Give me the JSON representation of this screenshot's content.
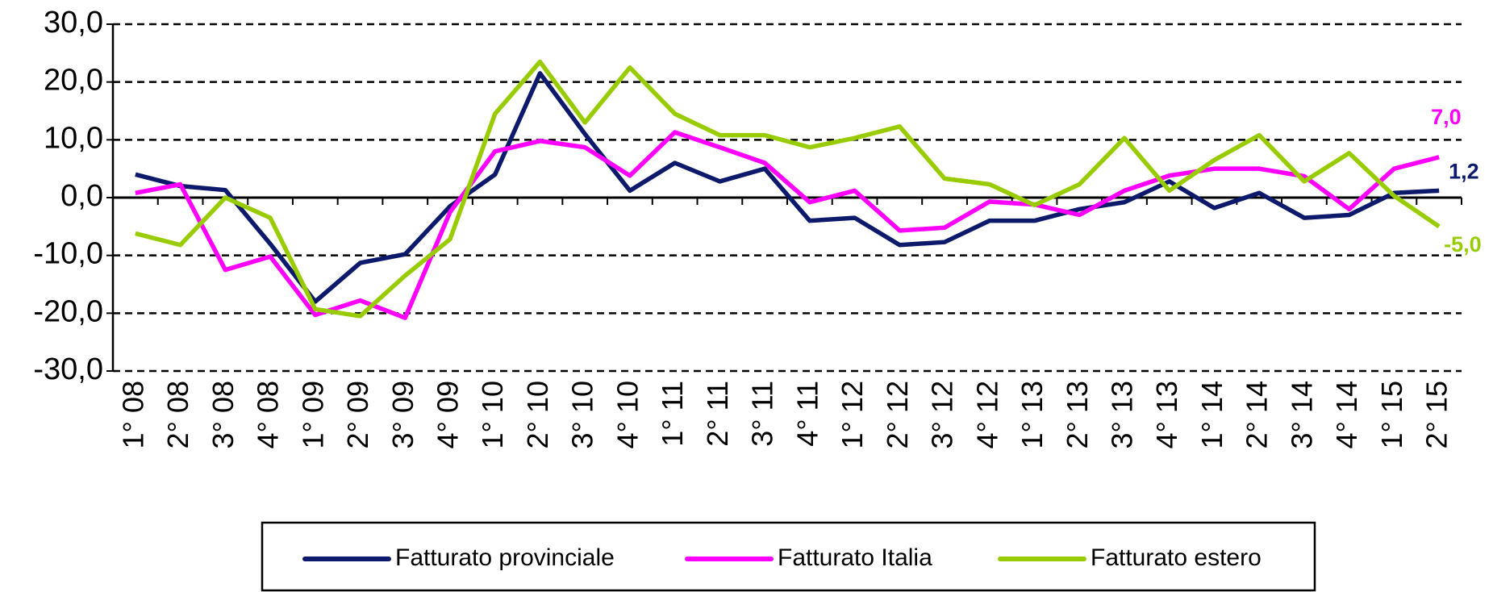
{
  "chart_data": {
    "type": "line",
    "categories": [
      "1° 08",
      "2° 08",
      "3° 08",
      "4° 08",
      "1° 09",
      "2° 09",
      "3° 09",
      "4° 09",
      "1° 10",
      "2° 10",
      "3° 10",
      "4° 10",
      "1° 11",
      "2° 11",
      "3° 11",
      "4° 11",
      "1° 12",
      "2° 12",
      "3° 12",
      "4° 12",
      "1° 13",
      "2° 13",
      "3° 13",
      "4° 13",
      "1° 14",
      "2° 14",
      "3° 14",
      "4° 14",
      "1° 15",
      "2° 15"
    ],
    "series": [
      {
        "name": "Fatturato provinciale",
        "color": "#0d1a6b",
        "values": [
          4,
          2,
          1.3,
          -8,
          -18,
          -11.3,
          -9.8,
          -1.5,
          4,
          21.5,
          11,
          1.2,
          6,
          2.8,
          5,
          -4,
          -3.5,
          -8.2,
          -7.7,
          -4,
          -4,
          -2,
          -0.8,
          2.8,
          -1.8,
          0.8,
          -3.5,
          -3,
          0.8,
          1.2
        ],
        "value_labels": [
          null,
          null,
          null,
          null,
          null,
          null,
          null,
          null,
          null,
          null,
          null,
          null,
          null,
          null,
          null,
          null,
          null,
          null,
          null,
          null,
          null,
          null,
          null,
          null,
          null,
          null,
          null,
          null,
          null,
          "1,2"
        ]
      },
      {
        "name": "Fatturato Italia",
        "color": "#ff00ff",
        "values": [
          0.8,
          2.3,
          -12.5,
          -10.2,
          -20.3,
          -17.8,
          -20.8,
          -2.5,
          8,
          9.8,
          8.7,
          3.8,
          11.3,
          8.7,
          6,
          -0.8,
          1.2,
          -5.7,
          -5.2,
          -0.7,
          -1.2,
          -3,
          1.2,
          3.8,
          5,
          5,
          3.7,
          -2,
          5,
          7.0
        ],
        "value_labels": [
          null,
          null,
          null,
          null,
          null,
          null,
          null,
          null,
          null,
          null,
          null,
          null,
          null,
          null,
          null,
          null,
          null,
          null,
          null,
          null,
          null,
          null,
          null,
          null,
          null,
          null,
          null,
          null,
          null,
          "7,0"
        ]
      },
      {
        "name": "Fatturato estero",
        "color": "#99cc00",
        "values": [
          -6.2,
          -8.2,
          0,
          -3.5,
          -19.3,
          -20.5,
          -13.5,
          -7.2,
          14.5,
          23.5,
          13,
          22.5,
          14.5,
          10.8,
          10.8,
          8.7,
          10.3,
          12.3,
          3.3,
          2.3,
          -1.3,
          2.3,
          10.3,
          1.2,
          6.5,
          10.8,
          2.8,
          7.7,
          0.3,
          -5.0
        ],
        "value_labels": [
          null,
          null,
          null,
          null,
          null,
          null,
          null,
          null,
          null,
          null,
          null,
          null,
          null,
          null,
          null,
          null,
          null,
          null,
          null,
          null,
          null,
          null,
          null,
          null,
          null,
          null,
          null,
          null,
          null,
          "-5,0"
        ]
      }
    ],
    "ylim": [
      -30,
      30
    ],
    "yticks": [
      {
        "value": -30,
        "label": "-30,0"
      },
      {
        "value": -20,
        "label": "-20,0"
      },
      {
        "value": -10,
        "label": "-10,0"
      },
      {
        "value": 0,
        "label": "0,0"
      },
      {
        "value": 10,
        "label": "10,0"
      },
      {
        "value": 20,
        "label": "20,0"
      },
      {
        "value": 30,
        "label": "30,0"
      }
    ],
    "grid": true,
    "legend": "bottom"
  }
}
